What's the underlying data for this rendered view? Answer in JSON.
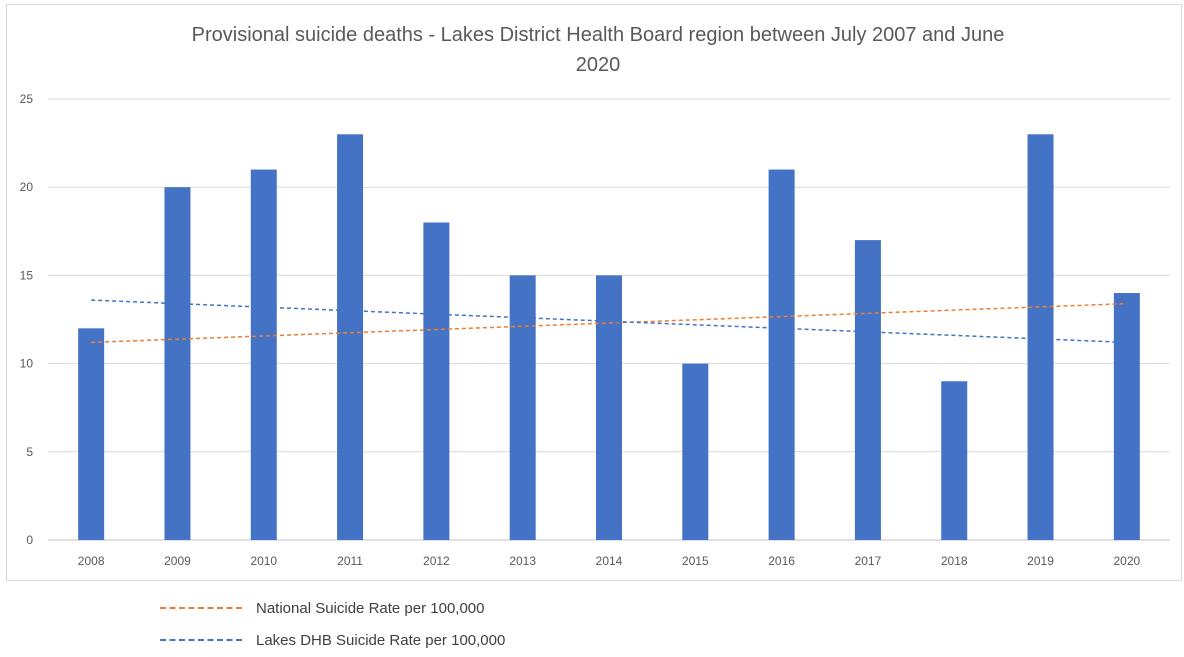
{
  "chart_data": {
    "type": "bar",
    "title": "Provisional suicide deaths  - Lakes District Health Board region between July 2007 and June 2020",
    "title_lines": [
      "Provisional suicide deaths  - Lakes District Health Board region between July 2007 and June",
      "2020"
    ],
    "categories": [
      "2008",
      "2009",
      "2010",
      "2011",
      "2012",
      "2013",
      "2014",
      "2015",
      "2016",
      "2017",
      "2018",
      "2019",
      "2020"
    ],
    "values": [
      12,
      20,
      21,
      23,
      18,
      15,
      15,
      10,
      21,
      17,
      9,
      23,
      14
    ],
    "bar_color": "#4472c4",
    "xlabel": "",
    "ylabel": "",
    "ylim": [
      0,
      25
    ],
    "y_ticks": [
      "0",
      "5",
      "10",
      "15",
      "20",
      "25"
    ],
    "grid": true,
    "legend_position": "bottom",
    "trendlines": [
      {
        "name": "National Suicide Rate per 100,000",
        "color": "#ed7d31",
        "start": 11.2,
        "end": 13.4
      },
      {
        "name": "Lakes DHB Suicide Rate per 100,000",
        "color": "#4472c4",
        "start": 13.6,
        "end": 11.2
      }
    ]
  }
}
